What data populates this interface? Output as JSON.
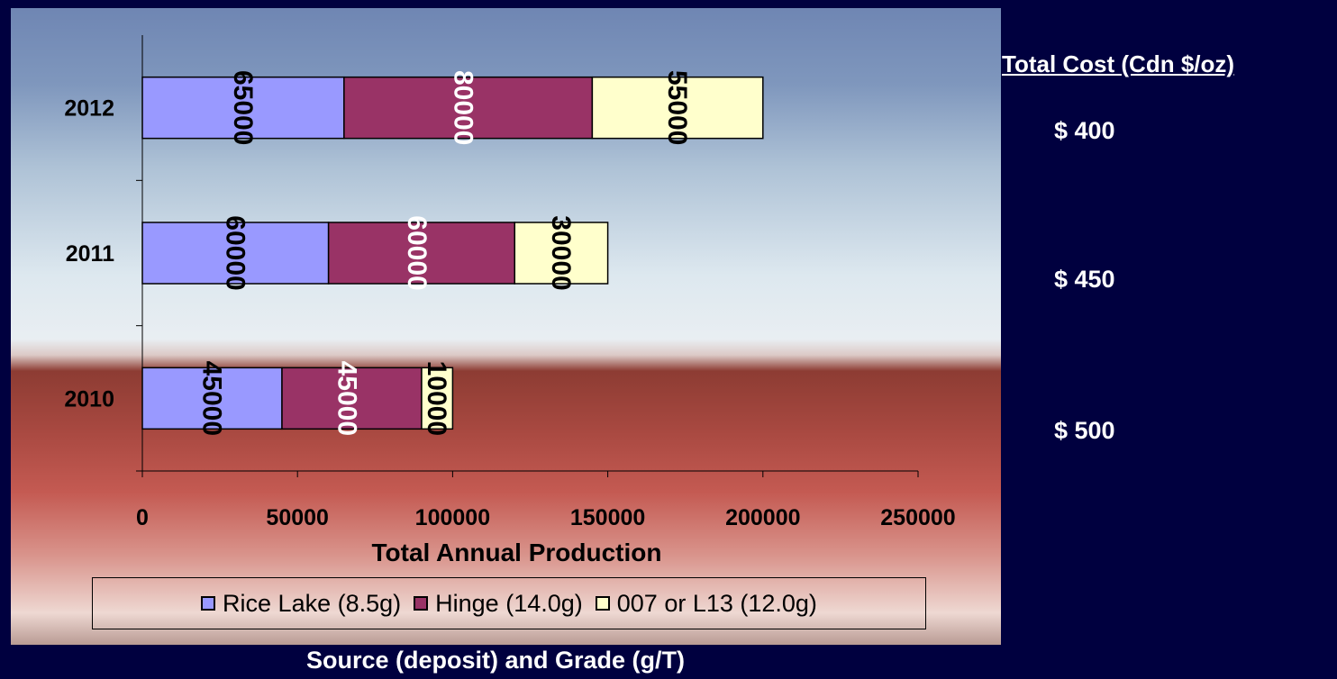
{
  "chart_data": {
    "type": "bar",
    "orientation": "horizontal",
    "stacked": true,
    "categories": [
      "2010",
      "2011",
      "2012"
    ],
    "series": [
      {
        "name": "Rice Lake (8.5g)",
        "values": [
          45000,
          60000,
          65000
        ],
        "color": "#9999ff"
      },
      {
        "name": "Hinge (14.0g)",
        "values": [
          45000,
          60000,
          80000
        ],
        "color": "#993366"
      },
      {
        "name": "007 or L13 (12.0g)",
        "values": [
          10000,
          30000,
          55000
        ],
        "color": "#ffffcc"
      }
    ],
    "data_label_colors": [
      "#000000",
      "#ffffff",
      "#000000"
    ],
    "xlabel": "Total Annual Production",
    "xlim": [
      0,
      250000
    ],
    "xticks": [
      "0",
      "50000",
      "100000",
      "150000",
      "200000",
      "250000"
    ],
    "legend_position": "bottom"
  },
  "right_panel": {
    "title": "Total Cost (Cdn $/oz)",
    "costs": [
      {
        "year": "2012",
        "label": "$ 400"
      },
      {
        "year": "2011",
        "label": "$ 450"
      },
      {
        "year": "2010",
        "label": "$ 500"
      }
    ]
  },
  "caption": "Source (deposit) and Grade (g/T)"
}
